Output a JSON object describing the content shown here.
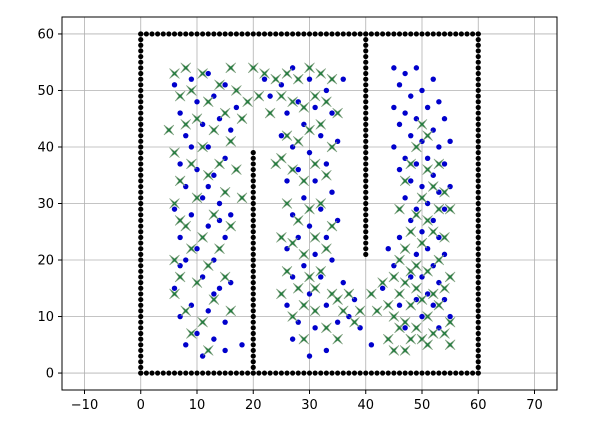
{
  "chart_data": {
    "type": "scatter",
    "xlim": [
      -14,
      74
    ],
    "ylim": [
      -3,
      63
    ],
    "x_ticks": [
      -10,
      0,
      10,
      20,
      30,
      40,
      50,
      60,
      70
    ],
    "y_ticks": [
      0,
      10,
      20,
      30,
      40,
      50,
      60
    ],
    "grid": true,
    "title": "",
    "xlabel": "",
    "ylabel": "",
    "walls": {
      "color": "#000000",
      "spacing": 1,
      "segments": [
        {
          "x0": 0,
          "y0": 0,
          "x1": 60,
          "y1": 0
        },
        {
          "x0": 0,
          "y0": 60,
          "x1": 60,
          "y1": 60
        },
        {
          "x0": 0,
          "y0": 0,
          "x1": 0,
          "y1": 60
        },
        {
          "x0": 60,
          "y0": 0,
          "x1": 60,
          "y1": 60
        },
        {
          "x0": 20,
          "y0": 0,
          "x1": 20,
          "y1": 39
        },
        {
          "x0": 40,
          "y0": 21,
          "x1": 40,
          "y1": 60
        }
      ]
    },
    "series": [
      {
        "marker": "dot",
        "color": "#0000cc",
        "points": [
          [
            6,
            51
          ],
          [
            7,
            46
          ],
          [
            7,
            37
          ],
          [
            7,
            24
          ],
          [
            6,
            15
          ],
          [
            7,
            10
          ],
          [
            8,
            42
          ],
          [
            8,
            33
          ],
          [
            8,
            20
          ],
          [
            9,
            52
          ],
          [
            9,
            28
          ],
          [
            9,
            12
          ],
          [
            10,
            48
          ],
          [
            10,
            36
          ],
          [
            10,
            22
          ],
          [
            10,
            7
          ],
          [
            11,
            44
          ],
          [
            11,
            31
          ],
          [
            11,
            17
          ],
          [
            12,
            53
          ],
          [
            12,
            40
          ],
          [
            12,
            26
          ],
          [
            12,
            11
          ],
          [
            13,
            49
          ],
          [
            13,
            35
          ],
          [
            13,
            20
          ],
          [
            13,
            6
          ],
          [
            14,
            45
          ],
          [
            14,
            30
          ],
          [
            14,
            15
          ],
          [
            15,
            51
          ],
          [
            15,
            38
          ],
          [
            15,
            24
          ],
          [
            15,
            9
          ],
          [
            16,
            43
          ],
          [
            16,
            28
          ],
          [
            17,
            47
          ],
          [
            18,
            5
          ],
          [
            6,
            29
          ],
          [
            8,
            5
          ],
          [
            11,
            3
          ],
          [
            14,
            27
          ],
          [
            13,
            14
          ],
          [
            9,
            40
          ],
          [
            16,
            16
          ],
          [
            7,
            19
          ],
          [
            12,
            33
          ],
          [
            15,
            4
          ],
          [
            22,
            52
          ],
          [
            23,
            49
          ],
          [
            25,
            51
          ],
          [
            26,
            46
          ],
          [
            26,
            34
          ],
          [
            26,
            22
          ],
          [
            26,
            12
          ],
          [
            27,
            54
          ],
          [
            27,
            40
          ],
          [
            27,
            28
          ],
          [
            27,
            17
          ],
          [
            28,
            48
          ],
          [
            28,
            36
          ],
          [
            28,
            24
          ],
          [
            28,
            9
          ],
          [
            29,
            44
          ],
          [
            29,
            31
          ],
          [
            29,
            19
          ],
          [
            30,
            52
          ],
          [
            30,
            39
          ],
          [
            30,
            26
          ],
          [
            30,
            14
          ],
          [
            31,
            47
          ],
          [
            31,
            34
          ],
          [
            31,
            21
          ],
          [
            31,
            8
          ],
          [
            32,
            42
          ],
          [
            32,
            29
          ],
          [
            32,
            17
          ],
          [
            33,
            50
          ],
          [
            33,
            37
          ],
          [
            33,
            24
          ],
          [
            33,
            12
          ],
          [
            34,
            46
          ],
          [
            34,
            32
          ],
          [
            34,
            20
          ],
          [
            35,
            41
          ],
          [
            35,
            27
          ],
          [
            35,
            9
          ],
          [
            36,
            52
          ],
          [
            36,
            16
          ],
          [
            37,
            10
          ],
          [
            38,
            13
          ],
          [
            39,
            8
          ],
          [
            41,
            5
          ],
          [
            43,
            15
          ],
          [
            27,
            6
          ],
          [
            30,
            3
          ],
          [
            33,
            4
          ],
          [
            25,
            42
          ],
          [
            45,
            54
          ],
          [
            45,
            47
          ],
          [
            45,
            40
          ],
          [
            46,
            51
          ],
          [
            46,
            44
          ],
          [
            47,
            53
          ],
          [
            47,
            46
          ],
          [
            47,
            38
          ],
          [
            48,
            49
          ],
          [
            48,
            42
          ],
          [
            48,
            34
          ],
          [
            49,
            54
          ],
          [
            49,
            45
          ],
          [
            49,
            37
          ],
          [
            49,
            29
          ],
          [
            49,
            21
          ],
          [
            50,
            50
          ],
          [
            50,
            41
          ],
          [
            50,
            33
          ],
          [
            50,
            25
          ],
          [
            50,
            17
          ],
          [
            50,
            10
          ],
          [
            51,
            47
          ],
          [
            51,
            38
          ],
          [
            51,
            30
          ],
          [
            51,
            22
          ],
          [
            51,
            14
          ],
          [
            52,
            52
          ],
          [
            52,
            43
          ],
          [
            52,
            35
          ],
          [
            52,
            27
          ],
          [
            52,
            19
          ],
          [
            52,
            12
          ],
          [
            53,
            48
          ],
          [
            53,
            40
          ],
          [
            53,
            32
          ],
          [
            53,
            24
          ],
          [
            53,
            16
          ],
          [
            53,
            8
          ],
          [
            54,
            45
          ],
          [
            54,
            37
          ],
          [
            54,
            29
          ],
          [
            54,
            21
          ],
          [
            54,
            13
          ],
          [
            55,
            10
          ],
          [
            46,
            12
          ],
          [
            47,
            8
          ],
          [
            48,
            17
          ],
          [
            49,
            13
          ],
          [
            45,
            19
          ],
          [
            44,
            22
          ],
          [
            46,
            24
          ],
          [
            48,
            27
          ],
          [
            47,
            31
          ],
          [
            55,
            33
          ],
          [
            55,
            41
          ],
          [
            46,
            36
          ]
        ]
      },
      {
        "marker": "star",
        "color": "#1a7a3a",
        "points": [
          [
            6,
            53
          ],
          [
            6,
            39
          ],
          [
            6,
            30
          ],
          [
            6,
            20
          ],
          [
            6,
            14
          ],
          [
            7,
            49
          ],
          [
            7,
            34
          ],
          [
            7,
            17
          ],
          [
            8,
            54
          ],
          [
            8,
            44
          ],
          [
            8,
            26
          ],
          [
            8,
            11
          ],
          [
            9,
            50
          ],
          [
            9,
            37
          ],
          [
            9,
            22
          ],
          [
            9,
            7
          ],
          [
            10,
            45
          ],
          [
            10,
            31
          ],
          [
            10,
            16
          ],
          [
            11,
            53
          ],
          [
            11,
            40
          ],
          [
            11,
            24
          ],
          [
            11,
            9
          ],
          [
            12,
            48
          ],
          [
            12,
            35
          ],
          [
            12,
            19
          ],
          [
            12,
            4
          ],
          [
            13,
            43
          ],
          [
            13,
            28
          ],
          [
            13,
            13
          ],
          [
            14,
            51
          ],
          [
            14,
            37
          ],
          [
            14,
            22
          ],
          [
            15,
            46
          ],
          [
            15,
            32
          ],
          [
            15,
            17
          ],
          [
            16,
            54
          ],
          [
            16,
            41
          ],
          [
            16,
            26
          ],
          [
            16,
            11
          ],
          [
            17,
            50
          ],
          [
            17,
            36
          ],
          [
            18,
            45
          ],
          [
            18,
            31
          ],
          [
            19,
            48
          ],
          [
            20,
            54
          ],
          [
            21,
            49
          ],
          [
            22,
            53
          ],
          [
            23,
            46
          ],
          [
            24,
            52
          ],
          [
            5,
            43
          ],
          [
            7,
            27
          ],
          [
            25,
            49
          ],
          [
            25,
            38
          ],
          [
            25,
            24
          ],
          [
            25,
            14
          ],
          [
            26,
            53
          ],
          [
            26,
            42
          ],
          [
            26,
            30
          ],
          [
            26,
            18
          ],
          [
            27,
            48
          ],
          [
            27,
            36
          ],
          [
            27,
            23
          ],
          [
            27,
            10
          ],
          [
            28,
            52
          ],
          [
            28,
            41
          ],
          [
            28,
            27
          ],
          [
            28,
            15
          ],
          [
            29,
            47
          ],
          [
            29,
            34
          ],
          [
            29,
            21
          ],
          [
            29,
            6
          ],
          [
            30,
            54
          ],
          [
            30,
            43
          ],
          [
            30,
            29
          ],
          [
            30,
            17
          ],
          [
            31,
            49
          ],
          [
            31,
            37
          ],
          [
            31,
            24
          ],
          [
            31,
            11
          ],
          [
            32,
            53
          ],
          [
            32,
            44
          ],
          [
            32,
            30
          ],
          [
            32,
            18
          ],
          [
            33,
            48
          ],
          [
            33,
            35
          ],
          [
            33,
            22
          ],
          [
            33,
            8
          ],
          [
            34,
            52
          ],
          [
            34,
            40
          ],
          [
            34,
            26
          ],
          [
            34,
            14
          ],
          [
            35,
            46
          ],
          [
            35,
            13
          ],
          [
            36,
            11
          ],
          [
            37,
            14
          ],
          [
            38,
            9
          ],
          [
            39,
            11
          ],
          [
            35,
            6
          ],
          [
            24,
            37
          ],
          [
            29,
            12
          ],
          [
            31,
            15
          ],
          [
            41,
            14
          ],
          [
            42,
            11
          ],
          [
            43,
            16
          ],
          [
            44,
            12
          ],
          [
            44,
            6
          ],
          [
            45,
            17
          ],
          [
            45,
            10
          ],
          [
            45,
            4
          ],
          [
            46,
            20
          ],
          [
            46,
            14
          ],
          [
            46,
            8
          ],
          [
            47,
            22
          ],
          [
            47,
            16
          ],
          [
            47,
            9
          ],
          [
            47,
            4
          ],
          [
            48,
            25
          ],
          [
            48,
            18
          ],
          [
            48,
            12
          ],
          [
            48,
            6
          ],
          [
            49,
            28
          ],
          [
            49,
            19
          ],
          [
            49,
            15
          ],
          [
            49,
            8
          ],
          [
            50,
            31
          ],
          [
            50,
            23
          ],
          [
            50,
            13
          ],
          [
            50,
            6
          ],
          [
            51,
            36
          ],
          [
            51,
            27
          ],
          [
            51,
            18
          ],
          [
            51,
            10
          ],
          [
            51,
            5
          ],
          [
            52,
            33
          ],
          [
            52,
            25
          ],
          [
            52,
            14
          ],
          [
            52,
            7
          ],
          [
            53,
            37
          ],
          [
            53,
            29
          ],
          [
            53,
            20
          ],
          [
            53,
            12
          ],
          [
            54,
            32
          ],
          [
            54,
            24
          ],
          [
            54,
            15
          ],
          [
            54,
            7
          ],
          [
            55,
            29
          ],
          [
            55,
            17
          ],
          [
            55,
            9
          ],
          [
            55,
            5
          ],
          [
            47,
            34
          ],
          [
            48,
            37
          ],
          [
            49,
            40
          ],
          [
            50,
            44
          ],
          [
            51,
            42
          ],
          [
            46,
            29
          ]
        ]
      }
    ]
  }
}
